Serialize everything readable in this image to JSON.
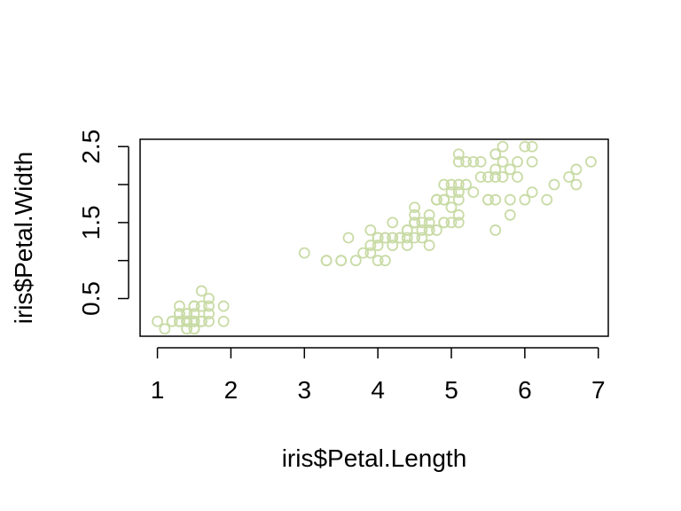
{
  "chart_data": {
    "type": "scatter",
    "title": "",
    "xlabel": "iris$Petal.Length",
    "ylabel": "iris$Petal.Width",
    "xlim": [
      1,
      6.9
    ],
    "ylim": [
      0.1,
      2.5
    ],
    "x_ticks": [
      "1",
      "2",
      "3",
      "4",
      "5",
      "6",
      "7"
    ],
    "y_ticks": [
      "0.5",
      "1.5",
      "2.5"
    ],
    "y_minor_ticks": [
      1.0,
      2.0
    ],
    "marker": "open-circle",
    "point_color": "#C9DBA6",
    "grid": false,
    "legend": "none",
    "points": [
      [
        1.4,
        0.2
      ],
      [
        1.4,
        0.2
      ],
      [
        1.3,
        0.2
      ],
      [
        1.5,
        0.2
      ],
      [
        1.4,
        0.2
      ],
      [
        1.7,
        0.4
      ],
      [
        1.4,
        0.3
      ],
      [
        1.5,
        0.2
      ],
      [
        1.4,
        0.2
      ],
      [
        1.5,
        0.1
      ],
      [
        1.5,
        0.2
      ],
      [
        1.6,
        0.2
      ],
      [
        1.4,
        0.1
      ],
      [
        1.1,
        0.1
      ],
      [
        1.2,
        0.2
      ],
      [
        1.5,
        0.4
      ],
      [
        1.3,
        0.4
      ],
      [
        1.4,
        0.3
      ],
      [
        1.7,
        0.3
      ],
      [
        1.5,
        0.3
      ],
      [
        1.7,
        0.2
      ],
      [
        1.5,
        0.4
      ],
      [
        1.0,
        0.2
      ],
      [
        1.7,
        0.5
      ],
      [
        1.9,
        0.2
      ],
      [
        1.6,
        0.2
      ],
      [
        1.6,
        0.4
      ],
      [
        1.5,
        0.2
      ],
      [
        1.4,
        0.2
      ],
      [
        1.6,
        0.2
      ],
      [
        1.6,
        0.2
      ],
      [
        1.5,
        0.4
      ],
      [
        1.5,
        0.1
      ],
      [
        1.4,
        0.2
      ],
      [
        1.5,
        0.2
      ],
      [
        1.2,
        0.2
      ],
      [
        1.3,
        0.2
      ],
      [
        1.4,
        0.1
      ],
      [
        1.3,
        0.2
      ],
      [
        1.5,
        0.2
      ],
      [
        1.3,
        0.3
      ],
      [
        1.3,
        0.3
      ],
      [
        1.3,
        0.2
      ],
      [
        1.6,
        0.6
      ],
      [
        1.9,
        0.4
      ],
      [
        1.4,
        0.3
      ],
      [
        1.6,
        0.2
      ],
      [
        1.4,
        0.2
      ],
      [
        1.5,
        0.2
      ],
      [
        1.4,
        0.2
      ],
      [
        4.7,
        1.4
      ],
      [
        4.5,
        1.5
      ],
      [
        4.9,
        1.5
      ],
      [
        4.0,
        1.3
      ],
      [
        4.6,
        1.5
      ],
      [
        4.5,
        1.3
      ],
      [
        4.7,
        1.6
      ],
      [
        3.3,
        1.0
      ],
      [
        4.6,
        1.3
      ],
      [
        3.9,
        1.4
      ],
      [
        3.5,
        1.0
      ],
      [
        4.2,
        1.5
      ],
      [
        4.0,
        1.0
      ],
      [
        4.7,
        1.4
      ],
      [
        3.6,
        1.3
      ],
      [
        4.4,
        1.4
      ],
      [
        4.5,
        1.5
      ],
      [
        4.1,
        1.0
      ],
      [
        4.5,
        1.5
      ],
      [
        3.9,
        1.1
      ],
      [
        4.8,
        1.8
      ],
      [
        4.0,
        1.3
      ],
      [
        4.9,
        1.5
      ],
      [
        4.7,
        1.2
      ],
      [
        4.3,
        1.3
      ],
      [
        4.4,
        1.4
      ],
      [
        4.8,
        1.4
      ],
      [
        5.0,
        1.7
      ],
      [
        4.5,
        1.5
      ],
      [
        3.5,
        1.0
      ],
      [
        3.8,
        1.1
      ],
      [
        3.7,
        1.0
      ],
      [
        3.9,
        1.2
      ],
      [
        5.1,
        1.6
      ],
      [
        4.5,
        1.5
      ],
      [
        4.5,
        1.6
      ],
      [
        4.7,
        1.5
      ],
      [
        4.4,
        1.3
      ],
      [
        4.1,
        1.3
      ],
      [
        4.0,
        1.3
      ],
      [
        4.4,
        1.2
      ],
      [
        4.6,
        1.4
      ],
      [
        4.0,
        1.2
      ],
      [
        3.3,
        1.0
      ],
      [
        4.2,
        1.3
      ],
      [
        4.2,
        1.2
      ],
      [
        4.2,
        1.3
      ],
      [
        4.3,
        1.3
      ],
      [
        3.0,
        1.1
      ],
      [
        4.1,
        1.3
      ],
      [
        6.0,
        2.5
      ],
      [
        5.1,
        1.9
      ],
      [
        5.9,
        2.1
      ],
      [
        5.6,
        1.8
      ],
      [
        5.8,
        2.2
      ],
      [
        6.6,
        2.1
      ],
      [
        4.5,
        1.7
      ],
      [
        6.3,
        1.8
      ],
      [
        5.8,
        1.8
      ],
      [
        6.1,
        2.5
      ],
      [
        5.1,
        2.0
      ],
      [
        5.3,
        1.9
      ],
      [
        5.5,
        2.1
      ],
      [
        5.0,
        2.0
      ],
      [
        5.1,
        2.4
      ],
      [
        5.3,
        2.3
      ],
      [
        5.5,
        1.8
      ],
      [
        6.7,
        2.2
      ],
      [
        6.9,
        2.3
      ],
      [
        5.0,
        1.5
      ],
      [
        5.7,
        2.3
      ],
      [
        4.9,
        2.0
      ],
      [
        6.7,
        2.0
      ],
      [
        4.9,
        1.8
      ],
      [
        5.7,
        2.1
      ],
      [
        6.0,
        1.8
      ],
      [
        4.8,
        1.8
      ],
      [
        4.9,
        1.8
      ],
      [
        5.6,
        2.1
      ],
      [
        5.8,
        1.6
      ],
      [
        6.1,
        1.9
      ],
      [
        6.4,
        2.0
      ],
      [
        5.6,
        2.2
      ],
      [
        5.1,
        1.5
      ],
      [
        5.6,
        1.4
      ],
      [
        6.1,
        2.3
      ],
      [
        5.6,
        2.4
      ],
      [
        5.5,
        1.8
      ],
      [
        4.8,
        1.8
      ],
      [
        5.4,
        2.1
      ],
      [
        5.6,
        2.4
      ],
      [
        5.1,
        2.3
      ],
      [
        5.1,
        1.9
      ],
      [
        5.9,
        2.3
      ],
      [
        5.7,
        2.5
      ],
      [
        5.2,
        2.3
      ],
      [
        5.0,
        1.9
      ],
      [
        5.2,
        2.0
      ],
      [
        5.4,
        2.3
      ],
      [
        5.1,
        1.8
      ]
    ]
  }
}
